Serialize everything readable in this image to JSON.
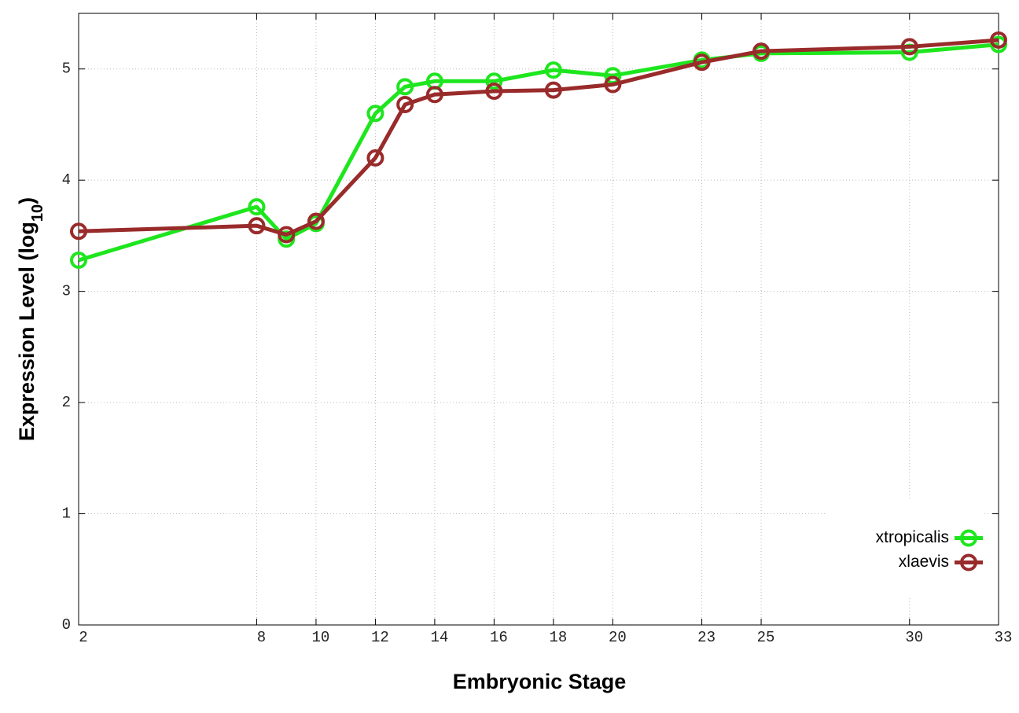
{
  "chart_data": {
    "type": "line",
    "x_label": "Embryonic Stage",
    "y_label": {
      "text": "Expression Level (log",
      "subscript": "10",
      "suffix": ")"
    },
    "x": [
      2,
      8,
      9,
      10,
      12,
      13,
      14,
      16,
      18,
      20,
      23,
      25,
      30,
      33
    ],
    "series": [
      {
        "name": "xtropicalis",
        "color": "#1ee61e",
        "values": [
          3.28,
          3.76,
          3.47,
          3.61,
          4.6,
          4.84,
          4.89,
          4.89,
          4.99,
          4.94,
          5.08,
          5.14,
          5.15,
          5.22
        ]
      },
      {
        "name": "xlaevis",
        "color": "#992b2b",
        "values": [
          3.54,
          3.59,
          3.51,
          3.63,
          4.2,
          4.68,
          4.77,
          4.8,
          4.81,
          4.86,
          5.06,
          5.16,
          5.2,
          5.26
        ]
      }
    ],
    "xlim": [
      2,
      33
    ],
    "xticks": [
      2,
      8,
      10,
      12,
      14,
      16,
      18,
      20,
      23,
      25,
      30,
      33
    ],
    "ylim": [
      0,
      5.5
    ],
    "yticks": [
      0,
      1,
      2,
      3,
      4,
      5
    ],
    "grid": true,
    "legend": "lower right",
    "marker": "circle"
  }
}
